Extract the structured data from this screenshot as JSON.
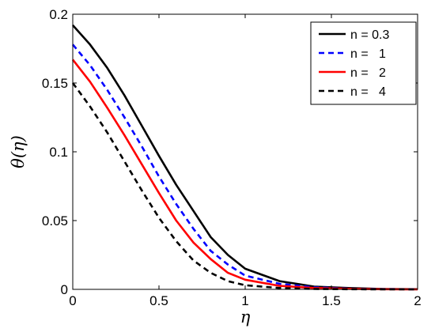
{
  "chart_data": {
    "type": "line",
    "title": "",
    "xlabel": "η",
    "ylabel": "θ(η)",
    "xlim": [
      0,
      2
    ],
    "ylim": [
      0,
      0.2
    ],
    "grid": false,
    "legend_placement": "top-right",
    "x_ticks": [
      "0",
      "0.5",
      "1",
      "1.5",
      "2"
    ],
    "y_ticks": [
      "0",
      "0.05",
      "0.1",
      "0.15",
      "0.2"
    ],
    "x": [
      0,
      0.1,
      0.2,
      0.3,
      0.4,
      0.5,
      0.6,
      0.7,
      0.8,
      0.9,
      1.0,
      1.2,
      1.4,
      1.6,
      1.8,
      2.0
    ],
    "series": [
      {
        "name": "n = 0.3",
        "color": "#000000",
        "dash": "solid",
        "values": [
          0.192,
          0.178,
          0.161,
          0.141,
          0.119,
          0.097,
          0.076,
          0.057,
          0.038,
          0.025,
          0.015,
          0.006,
          0.002,
          0.001,
          0.0003,
          0.0001
        ]
      },
      {
        "name": "n =   1",
        "color": "#0000ff",
        "dash": "dashed",
        "values": [
          0.178,
          0.163,
          0.145,
          0.125,
          0.104,
          0.082,
          0.062,
          0.044,
          0.028,
          0.018,
          0.01,
          0.004,
          0.0015,
          0.0005,
          0.0002,
          0.0001
        ]
      },
      {
        "name": "n =   2",
        "color": "#ff0000",
        "dash": "solid",
        "values": [
          0.167,
          0.151,
          0.132,
          0.112,
          0.091,
          0.07,
          0.05,
          0.034,
          0.022,
          0.012,
          0.007,
          0.0025,
          0.001,
          0.0004,
          0.0001,
          0.0
        ]
      },
      {
        "name": "n =   4",
        "color": "#000000",
        "dash": "dashed",
        "values": [
          0.15,
          0.133,
          0.114,
          0.093,
          0.072,
          0.052,
          0.035,
          0.021,
          0.012,
          0.006,
          0.003,
          0.001,
          0.0003,
          0.0001,
          0.0,
          0.0
        ]
      }
    ]
  }
}
